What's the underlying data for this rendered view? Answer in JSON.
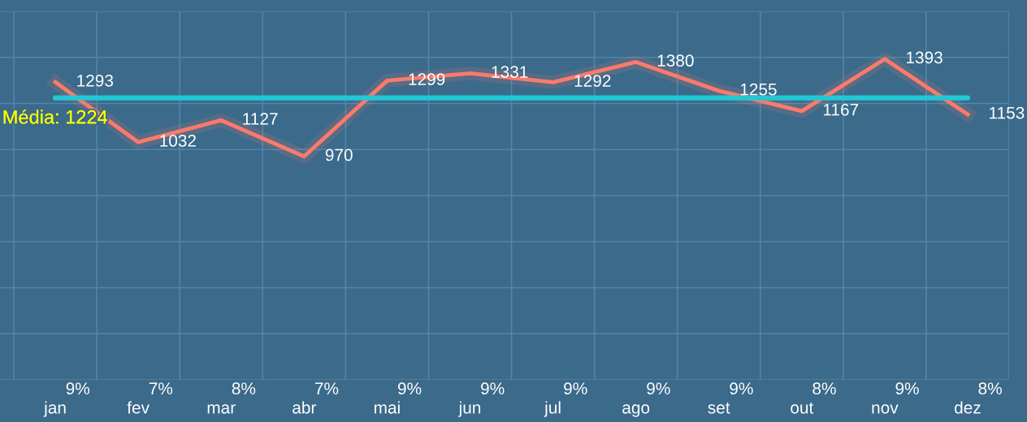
{
  "chart_data": {
    "type": "line",
    "categories": [
      "jan",
      "fev",
      "mar",
      "abr",
      "mai",
      "jun",
      "jul",
      "ago",
      "set",
      "out",
      "nov",
      "dez"
    ],
    "series": [
      {
        "color": "#fa7a6c",
        "values": [
          1293,
          1032,
          1127,
          970,
          1299,
          1331,
          1292,
          1380,
          1255,
          1167,
          1393,
          1153
        ]
      }
    ],
    "data_labels": true,
    "ylim": [
      0,
      1600
    ],
    "yticks": [
      {
        "value": 0,
        "label": null
      },
      {
        "value": 200,
        "label": null
      },
      {
        "value": 400,
        "label": null
      },
      {
        "value": 600,
        "label": null
      },
      {
        "value": 800,
        "label": null
      },
      {
        "value": 1000,
        "label": null
      },
      {
        "value": 1200,
        "label": null
      },
      {
        "value": 1400,
        "label": null
      },
      {
        "value": 1600,
        "label": null
      }
    ],
    "tick_labels": "x",
    "grid": true,
    "marker": "none",
    "line_style": "solid",
    "legend": false,
    "ref_lines": [
      {
        "axis": "y",
        "value": 1224,
        "label": "Média: 1224",
        "color": "#22c8d4"
      }
    ],
    "annotations": [
      "9%",
      "7%",
      "8%",
      "7%",
      "9%",
      "9%",
      "9%",
      "9%",
      "9%",
      "8%",
      "9%",
      "8%"
    ]
  }
}
